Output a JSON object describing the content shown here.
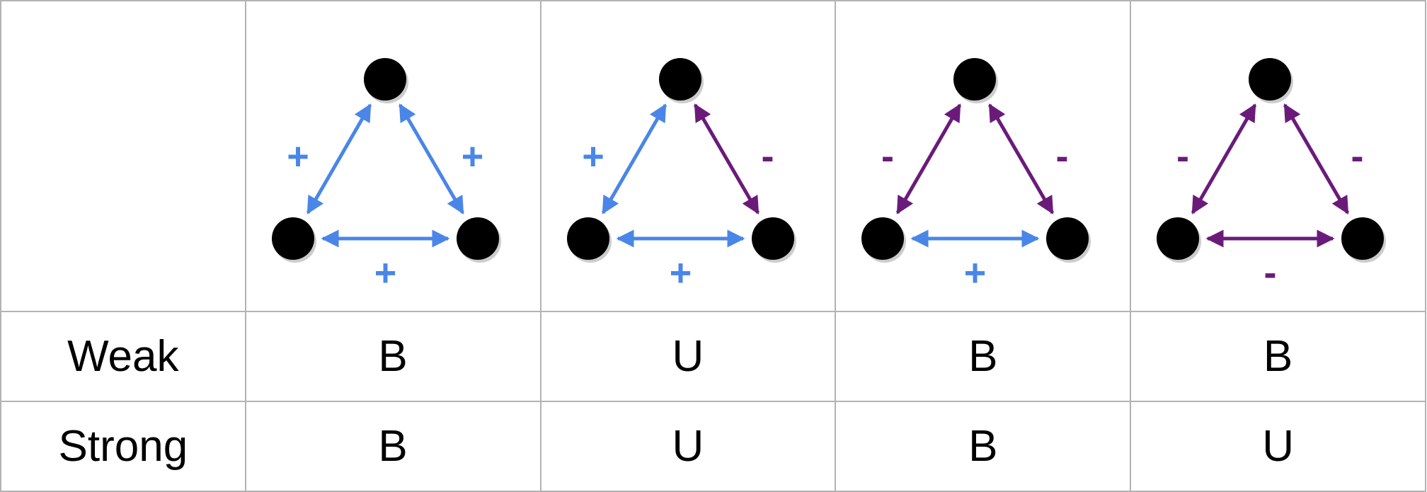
{
  "table": {
    "colors": {
      "positive": "#4a86e8",
      "negative": "#6a1b7a",
      "node": "#000000",
      "border": "#b3b3b3"
    },
    "triads": [
      {
        "left": "+",
        "right": "+",
        "bottom": "+"
      },
      {
        "left": "+",
        "right": "-",
        "bottom": "+"
      },
      {
        "left": "-",
        "right": "-",
        "bottom": "+"
      },
      {
        "left": "-",
        "right": "-",
        "bottom": "-"
      }
    ],
    "rows": [
      {
        "label": "Weak",
        "values": [
          "B",
          "U",
          "B",
          "B"
        ]
      },
      {
        "label": "Strong",
        "values": [
          "B",
          "U",
          "B",
          "U"
        ]
      }
    ]
  }
}
